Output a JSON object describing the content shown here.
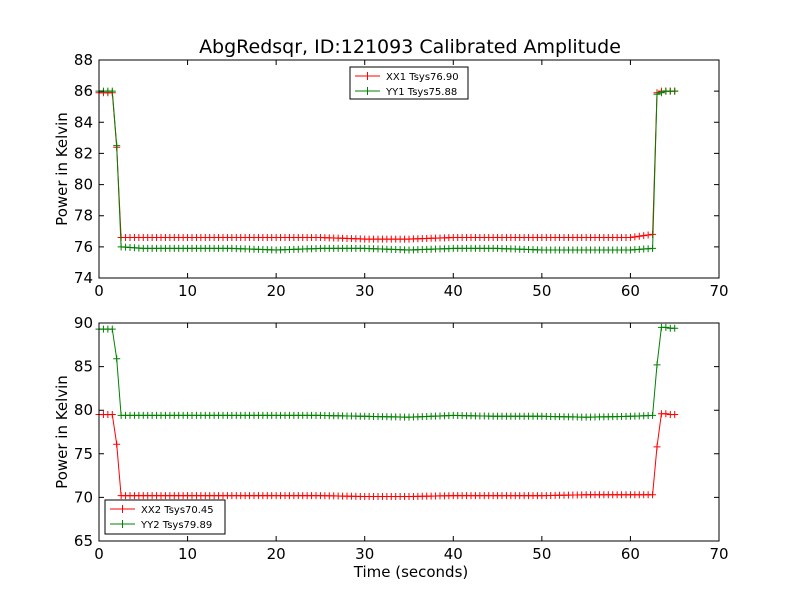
{
  "chart_data": [
    {
      "type": "line",
      "title": "AbgRedsqr, ID:121093 Calibrated Amplitude",
      "xlabel": "",
      "ylabel": "Power in Kelvin",
      "xlim": [
        0,
        70
      ],
      "ylim": [
        74,
        88
      ],
      "xticks": [
        "0",
        "10",
        "20",
        "30",
        "40",
        "50",
        "60",
        "70"
      ],
      "yticks": [
        "74",
        "76",
        "78",
        "80",
        "82",
        "84",
        "86",
        "88"
      ],
      "grid": false,
      "legend_position": "upper-center",
      "series": [
        {
          "name": "XX1 Tsys76.90",
          "color": "#ff0000",
          "points": [
            [
              0.0,
              85.9
            ],
            [
              0.5,
              85.9
            ],
            [
              1.0,
              85.9
            ],
            [
              1.5,
              85.9
            ],
            [
              2.0,
              82.4
            ],
            [
              2.5,
              76.6
            ],
            [
              5,
              76.6
            ],
            [
              10,
              76.6
            ],
            [
              15,
              76.6
            ],
            [
              20,
              76.6
            ],
            [
              25,
              76.6
            ],
            [
              30,
              76.5
            ],
            [
              35,
              76.5
            ],
            [
              40,
              76.6
            ],
            [
              45,
              76.6
            ],
            [
              50,
              76.6
            ],
            [
              55,
              76.6
            ],
            [
              60,
              76.6
            ],
            [
              62.5,
              76.8
            ],
            [
              63.0,
              85.9
            ],
            [
              63.5,
              86.0
            ],
            [
              64.0,
              86.0
            ],
            [
              64.5,
              86.0
            ],
            [
              65.0,
              86.0
            ]
          ]
        },
        {
          "name": "YY1 Tsys75.88",
          "color": "#008000",
          "points": [
            [
              0.0,
              86.0
            ],
            [
              0.5,
              86.0
            ],
            [
              1.0,
              86.0
            ],
            [
              1.5,
              86.0
            ],
            [
              2.0,
              82.5
            ],
            [
              2.5,
              76.0
            ],
            [
              5,
              75.9
            ],
            [
              10,
              75.9
            ],
            [
              15,
              75.9
            ],
            [
              20,
              75.8
            ],
            [
              25,
              75.9
            ],
            [
              30,
              75.9
            ],
            [
              35,
              75.8
            ],
            [
              40,
              75.9
            ],
            [
              45,
              75.9
            ],
            [
              50,
              75.8
            ],
            [
              55,
              75.8
            ],
            [
              60,
              75.8
            ],
            [
              62.5,
              75.9
            ],
            [
              63.0,
              85.8
            ],
            [
              63.5,
              85.9
            ],
            [
              64.0,
              86.0
            ],
            [
              64.5,
              86.0
            ],
            [
              65.0,
              86.0
            ]
          ]
        }
      ]
    },
    {
      "type": "line",
      "title": "",
      "xlabel": "Time (seconds)",
      "ylabel": "Power in Kelvin",
      "xlim": [
        0,
        70
      ],
      "ylim": [
        65,
        90
      ],
      "xticks": [
        "0",
        "10",
        "20",
        "30",
        "40",
        "50",
        "60",
        "70"
      ],
      "yticks": [
        "65",
        "70",
        "75",
        "80",
        "85",
        "90"
      ],
      "grid": false,
      "legend_position": "lower-left",
      "series": [
        {
          "name": "XX2 Tsys70.45",
          "color": "#ff0000",
          "points": [
            [
              0.0,
              79.5
            ],
            [
              0.5,
              79.5
            ],
            [
              1.0,
              79.5
            ],
            [
              1.5,
              79.5
            ],
            [
              2.0,
              76.1
            ],
            [
              2.5,
              70.2
            ],
            [
              5,
              70.2
            ],
            [
              10,
              70.2
            ],
            [
              15,
              70.2
            ],
            [
              20,
              70.2
            ],
            [
              25,
              70.2
            ],
            [
              30,
              70.1
            ],
            [
              35,
              70.1
            ],
            [
              40,
              70.2
            ],
            [
              45,
              70.2
            ],
            [
              50,
              70.2
            ],
            [
              55,
              70.3
            ],
            [
              60,
              70.3
            ],
            [
              62.5,
              70.3
            ],
            [
              63.0,
              75.8
            ],
            [
              63.5,
              79.6
            ],
            [
              64.0,
              79.6
            ],
            [
              64.5,
              79.5
            ],
            [
              65.0,
              79.5
            ]
          ]
        },
        {
          "name": "YY2 Tsys79.89",
          "color": "#008000",
          "points": [
            [
              0.0,
              89.3
            ],
            [
              0.5,
              89.3
            ],
            [
              1.0,
              89.3
            ],
            [
              1.5,
              89.3
            ],
            [
              2.0,
              85.9
            ],
            [
              2.5,
              79.4
            ],
            [
              5,
              79.4
            ],
            [
              10,
              79.4
            ],
            [
              15,
              79.4
            ],
            [
              20,
              79.4
            ],
            [
              25,
              79.4
            ],
            [
              30,
              79.3
            ],
            [
              35,
              79.2
            ],
            [
              40,
              79.4
            ],
            [
              45,
              79.3
            ],
            [
              50,
              79.3
            ],
            [
              55,
              79.2
            ],
            [
              60,
              79.3
            ],
            [
              62.5,
              79.4
            ],
            [
              63.0,
              85.2
            ],
            [
              63.5,
              89.5
            ],
            [
              64.0,
              89.5
            ],
            [
              64.5,
              89.4
            ],
            [
              65.0,
              89.4
            ]
          ]
        }
      ]
    }
  ]
}
